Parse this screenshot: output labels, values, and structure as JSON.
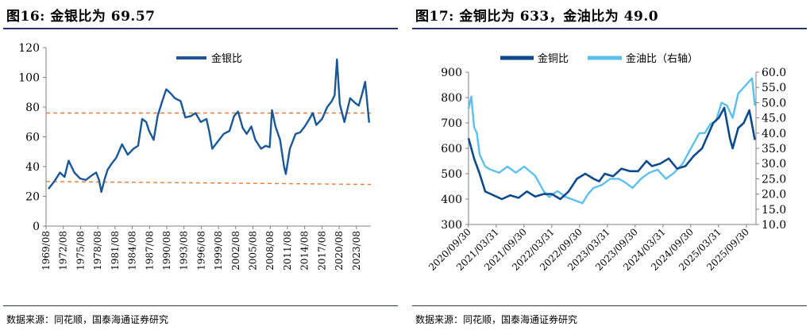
{
  "left": {
    "title": "图16:  金银比为 69.57",
    "source": "数据来源：同花顺，国泰海通证券研究"
  },
  "right": {
    "title": "图17:  金铜比为 633，金油比为 49.0",
    "source": "数据来源：同花顺，国泰海通证券研究"
  },
  "chart_data": [
    {
      "type": "line",
      "title": "图16: 金银比为 69.57",
      "ylim": [
        0,
        120
      ],
      "yticks": [
        0,
        20,
        40,
        60,
        80,
        100,
        120
      ],
      "xlim": [
        1969.58,
        2026.1
      ],
      "xticks": [
        "1969/08",
        "1972/08",
        "1975/08",
        "1978/08",
        "1981/08",
        "1984/08",
        "1987/08",
        "1990/08",
        "1993/08",
        "1996/08",
        "1999/08",
        "2002/08",
        "2005/08",
        "2008/08",
        "2011/08",
        "2014/08",
        "2017/08",
        "2020/08",
        "2023/08"
      ],
      "legend_position": "top-center",
      "colors": {
        "series": "#1a5798",
        "reference": "#ed7d31"
      },
      "series": [
        {
          "name": "金银比",
          "x": [
            1970.0,
            1971.0,
            1972.0,
            1972.8,
            1973.5,
            1974.5,
            1975.5,
            1976.5,
            1977.5,
            1978.3,
            1978.8,
            1979.2,
            1979.8,
            1980.3,
            1981.0,
            1981.8,
            1982.8,
            1983.8,
            1984.8,
            1985.6,
            1986.3,
            1987.0,
            1987.5,
            1988.3,
            1989.0,
            1989.8,
            1990.5,
            1991.3,
            1992.0,
            1993.0,
            1993.8,
            1994.8,
            1995.6,
            1996.5,
            1997.5,
            1998.0,
            1998.5,
            1999.5,
            2000.5,
            2001.5,
            2002.3,
            2003.0,
            2003.8,
            2004.5,
            2005.3,
            2006.0,
            2007.0,
            2007.8,
            2008.5,
            2008.9,
            2009.5,
            2010.3,
            2011.0,
            2011.3,
            2012.0,
            2013.0,
            2013.8,
            2014.6,
            2015.4,
            2016.0,
            2016.6,
            2017.6,
            2018.5,
            2019.3,
            2019.8,
            2020.2,
            2020.7,
            2021.5,
            2022.5,
            2023.3,
            2024.0,
            2024.6,
            2025.1,
            2025.4,
            2025.8
          ],
          "y": [
            25,
            30,
            36,
            33,
            44,
            36,
            32,
            31,
            34,
            36,
            31,
            23,
            32,
            38,
            42,
            46,
            55,
            48,
            52,
            54,
            72,
            70,
            64,
            58,
            74,
            84,
            92,
            89,
            86,
            84,
            73,
            74,
            76,
            70,
            72,
            63,
            52,
            57,
            62,
            64,
            74,
            77,
            66,
            62,
            67,
            58,
            52,
            54,
            53,
            78,
            67,
            58,
            40,
            35,
            52,
            62,
            63,
            67,
            72,
            76,
            68,
            72,
            80,
            84,
            88,
            112,
            82,
            70,
            86,
            83,
            81,
            89,
            97,
            86,
            69.57
          ]
        },
        {
          "name": "",
          "x": [
            1969.58,
            2026.1
          ],
          "y": [
            76,
            76
          ]
        },
        {
          "name": "",
          "x": [
            1969.58,
            2026.1
          ],
          "y": [
            30,
            28
          ]
        }
      ]
    },
    {
      "type": "line",
      "title": "图17: 金铜比为 633，金油比为 49.0",
      "ylim": [
        300,
        900
      ],
      "yticks": [
        300,
        400,
        500,
        600,
        700,
        800,
        900
      ],
      "y2lim": [
        10,
        60
      ],
      "y2ticks": [
        "10.0",
        "15.0",
        "20.0",
        "25.0",
        "30.0",
        "35.0",
        "40.0",
        "45.0",
        "50.0",
        "55.0",
        "60.0"
      ],
      "xlim": [
        2020.75,
        2025.92
      ],
      "xticks": [
        "2020/09/30",
        "2021/03/31",
        "2021/09/30",
        "2022/03/31",
        "2022/09/30",
        "2023/03/31",
        "2023/09/30",
        "2024/03/31",
        "2024/09/30",
        "2025/03/31",
        "2025/09/30"
      ],
      "legend_position": "top-left",
      "colors": {
        "金铜比": "#0d4a8c",
        "金油比": "#5bc0f0"
      },
      "series": [
        {
          "name": "金铜比",
          "axis": "left",
          "x": [
            2020.75,
            2020.85,
            2020.95,
            2021.05,
            2021.15,
            2021.25,
            2021.35,
            2021.5,
            2021.65,
            2021.8,
            2021.95,
            2022.1,
            2022.25,
            2022.4,
            2022.55,
            2022.7,
            2022.85,
            2023.0,
            2023.1,
            2023.2,
            2023.35,
            2023.5,
            2023.65,
            2023.8,
            2023.95,
            2024.05,
            2024.2,
            2024.35,
            2024.5,
            2024.65,
            2024.8,
            2024.95,
            2025.05,
            2025.15,
            2025.25,
            2025.35,
            2025.45,
            2025.5,
            2025.6,
            2025.7,
            2025.8,
            2025.9
          ],
          "y": [
            640,
            560,
            500,
            430,
            420,
            410,
            400,
            415,
            405,
            430,
            410,
            420,
            420,
            400,
            430,
            480,
            500,
            480,
            470,
            500,
            490,
            520,
            510,
            510,
            550,
            530,
            540,
            560,
            520,
            530,
            570,
            600,
            650,
            700,
            720,
            760,
            640,
            600,
            680,
            700,
            750,
            633
          ]
        },
        {
          "name": "金油比（右轴）",
          "axis": "right",
          "x": [
            2020.75,
            2020.8,
            2020.85,
            2020.9,
            2020.95,
            2021.05,
            2021.15,
            2021.3,
            2021.45,
            2021.6,
            2021.75,
            2021.95,
            2022.1,
            2022.2,
            2022.35,
            2022.5,
            2022.65,
            2022.8,
            2022.9,
            2023.0,
            2023.15,
            2023.3,
            2023.45,
            2023.55,
            2023.7,
            2023.85,
            2024.0,
            2024.15,
            2024.3,
            2024.45,
            2024.6,
            2024.75,
            2024.9,
            2025.0,
            2025.1,
            2025.2,
            2025.3,
            2025.4,
            2025.5,
            2025.6,
            2025.7,
            2025.85,
            2025.9
          ],
          "y": [
            48,
            52,
            42,
            40,
            33,
            29,
            28,
            27,
            29,
            27,
            29,
            26,
            21,
            19,
            21,
            19,
            18,
            17,
            20,
            22,
            23,
            25,
            25,
            24,
            22,
            25,
            27,
            28,
            25,
            27,
            30,
            35,
            40,
            40,
            43,
            44,
            50,
            49,
            45,
            53,
            55,
            58,
            49.0
          ]
        }
      ]
    }
  ]
}
